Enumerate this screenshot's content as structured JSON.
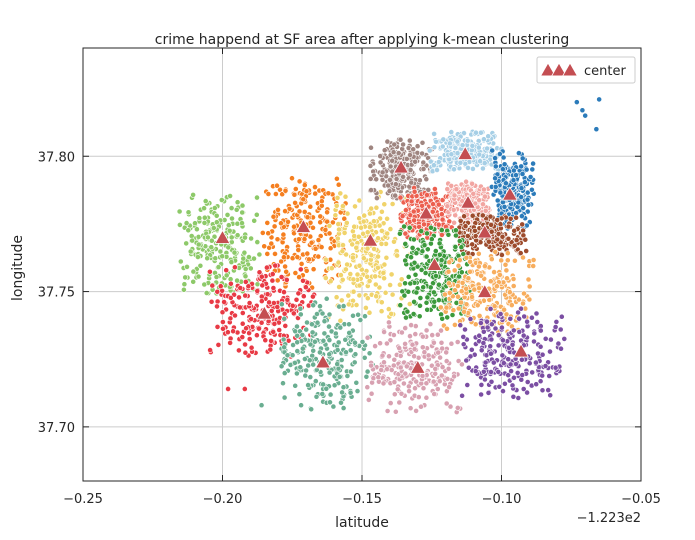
{
  "chart_data": {
    "type": "scatter",
    "title": "crime happend at SF area after applying k-mean clustering",
    "xlabel": "latitude",
    "ylabel": "longitude",
    "x_offset_label": "−1.223e2",
    "xlim": [
      -0.25,
      -0.05
    ],
    "ylim": [
      37.68,
      37.84
    ],
    "x_ticks": [
      -0.25,
      -0.2,
      -0.15,
      -0.1,
      -0.05
    ],
    "x_tick_labels": [
      "−0.25",
      "−0.20",
      "−0.15",
      "−0.10",
      "−0.05"
    ],
    "y_ticks": [
      37.7,
      37.75,
      37.8
    ],
    "y_tick_labels": [
      "37.70",
      "37.75",
      "37.80"
    ],
    "grid": true,
    "legend": {
      "position": "top-right",
      "entries": [
        "center"
      ]
    },
    "center_color": "#c44e52",
    "centers": [
      {
        "x": -0.2,
        "y": 37.77
      },
      {
        "x": -0.171,
        "y": 37.774
      },
      {
        "x": -0.147,
        "y": 37.769
      },
      {
        "x": -0.136,
        "y": 37.796
      },
      {
        "x": -0.113,
        "y": 37.801
      },
      {
        "x": -0.127,
        "y": 37.779
      },
      {
        "x": -0.112,
        "y": 37.783
      },
      {
        "x": -0.097,
        "y": 37.786
      },
      {
        "x": -0.106,
        "y": 37.772
      },
      {
        "x": -0.124,
        "y": 37.76
      },
      {
        "x": -0.106,
        "y": 37.75
      },
      {
        "x": -0.185,
        "y": 37.742
      },
      {
        "x": -0.164,
        "y": 37.724
      },
      {
        "x": -0.13,
        "y": 37.722
      },
      {
        "x": -0.093,
        "y": 37.728
      }
    ],
    "clusters": [
      {
        "color": "#8dc969",
        "cx": -0.201,
        "cy": 37.767,
        "sx": 0.008,
        "sy": 0.01
      },
      {
        "color": "#f57f20",
        "cx": -0.171,
        "cy": 37.772,
        "sx": 0.008,
        "sy": 0.011
      },
      {
        "color": "#f0d36a",
        "cx": -0.148,
        "cy": 37.763,
        "sx": 0.008,
        "sy": 0.013
      },
      {
        "color": "#9f8580",
        "cx": -0.136,
        "cy": 37.795,
        "sx": 0.006,
        "sy": 0.006
      },
      {
        "color": "#a6cfe6",
        "cx": -0.113,
        "cy": 37.802,
        "sx": 0.007,
        "sy": 0.004
      },
      {
        "color": "#ec5f4f",
        "cx": -0.127,
        "cy": 37.779,
        "sx": 0.005,
        "sy": 0.005
      },
      {
        "color": "#f2a5a1",
        "cx": -0.112,
        "cy": 37.783,
        "sx": 0.004,
        "sy": 0.004
      },
      {
        "color": "#2b7bba",
        "cx": -0.096,
        "cy": 37.787,
        "sx": 0.004,
        "sy": 0.008
      },
      {
        "color": "#9d4b2c",
        "cx": -0.104,
        "cy": 37.771,
        "sx": 0.007,
        "sy": 0.004
      },
      {
        "color": "#3c9a3c",
        "cx": -0.124,
        "cy": 37.757,
        "sx": 0.007,
        "sy": 0.009
      },
      {
        "color": "#f7ad5d",
        "cx": -0.105,
        "cy": 37.75,
        "sx": 0.009,
        "sy": 0.008
      },
      {
        "color": "#e83a45",
        "cx": -0.186,
        "cy": 37.743,
        "sx": 0.01,
        "sy": 0.009
      },
      {
        "color": "#6aae91",
        "cx": -0.163,
        "cy": 37.727,
        "sx": 0.009,
        "sy": 0.011
      },
      {
        "color": "#d8a1b1",
        "cx": -0.131,
        "cy": 37.722,
        "sx": 0.009,
        "sy": 0.009
      },
      {
        "color": "#7b4ea3",
        "cx": -0.096,
        "cy": 37.727,
        "sx": 0.01,
        "sy": 0.009
      }
    ],
    "outliers": [
      {
        "x": -0.073,
        "y": 37.82,
        "color": "#2b7bba"
      },
      {
        "x": -0.071,
        "y": 37.817,
        "color": "#2b7bba"
      },
      {
        "x": -0.07,
        "y": 37.815,
        "color": "#2b7bba"
      },
      {
        "x": -0.065,
        "y": 37.821,
        "color": "#2b7bba"
      },
      {
        "x": -0.066,
        "y": 37.81,
        "color": "#2b7bba"
      },
      {
        "x": -0.198,
        "y": 37.714,
        "color": "#e83a45"
      },
      {
        "x": -0.192,
        "y": 37.714,
        "color": "#e83a45"
      },
      {
        "x": -0.186,
        "y": 37.708,
        "color": "#6aae91"
      }
    ]
  }
}
